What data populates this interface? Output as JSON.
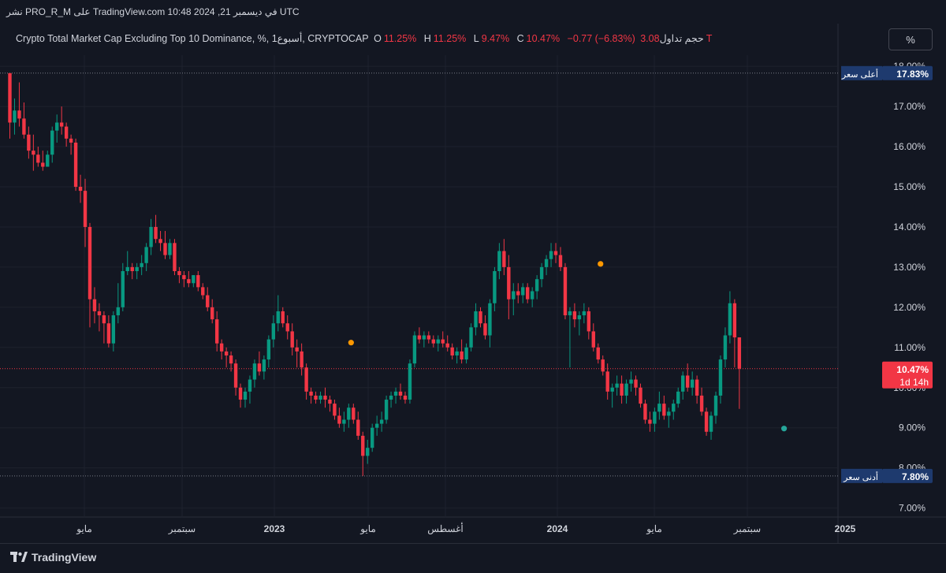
{
  "header": {
    "caption": "نشر PRO_R_M على TradingView.com 10:48 2024 ,21 في ديسمبر UTC"
  },
  "legend": {
    "symbol": "Crypto Total Market Cap Excluding Top 10 Dominance, %, 1أسبوع, CRYPTOCAP",
    "o_label": "O",
    "o_value": "11.25%",
    "h_label": "H",
    "h_value": "11.25%",
    "l_label": "L",
    "l_value": "9.47%",
    "c_label": "C",
    "c_value": "10.47%",
    "change": "−0.77 (−6.83%)",
    "volume_label": "حجم تداول",
    "volume_value": "3.08T"
  },
  "toolbar": {
    "percent_button": "%"
  },
  "footer": {
    "brand": "TradingView"
  },
  "colors": {
    "background": "#131722",
    "grid": "#1e222d",
    "up": "#089981",
    "down": "#f23645",
    "label_blue": "#1e3a6e",
    "marker_orange": "#ff9800",
    "marker_teal": "#26a69a"
  },
  "chart_data": {
    "type": "candlestick",
    "title": "Crypto Total Market Cap Excluding Top 10 Dominance",
    "interval": "1 week",
    "ylabel_unit": "%",
    "ylim": [
      6.8,
      18.3
    ],
    "yticks": [
      "7.00%",
      "8.00%",
      "9.00%",
      "10.00%",
      "11.00%",
      "12.00%",
      "13.00%",
      "14.00%",
      "15.00%",
      "16.00%",
      "17.00%",
      "18.00%"
    ],
    "ytick_values": [
      7,
      8,
      9,
      10,
      11,
      12,
      13,
      14,
      15,
      16,
      17,
      18
    ],
    "xlabels": [
      "مايو",
      "سبتمبر",
      "2023",
      "مايو",
      "أغسطس",
      "2024",
      "مايو",
      "سبتمبر",
      "2025"
    ],
    "xlabel_bold": [
      false,
      false,
      true,
      false,
      false,
      true,
      false,
      false,
      true
    ],
    "high_line": {
      "label": "أعلى سعر",
      "value": "17.83%",
      "level": 17.83
    },
    "low_line": {
      "label": "أدنى سعر",
      "value": "7.80%",
      "level": 7.8
    },
    "last_price": {
      "value": "10.47%",
      "countdown": "1d 14h",
      "level": 10.47
    },
    "markers": [
      {
        "candle_index": 72,
        "level": 11.12,
        "color": "orange"
      },
      {
        "candle_index": 125,
        "level": 13.08,
        "color": "orange"
      },
      {
        "candle_index": 164,
        "level": 8.98,
        "color": "teal"
      }
    ],
    "candles": [
      [
        17.83,
        17.83,
        16.2,
        16.6
      ],
      [
        16.6,
        17.2,
        16.3,
        16.9
      ],
      [
        16.9,
        17.6,
        16.5,
        16.7
      ],
      [
        16.7,
        17.1,
        16.2,
        16.3
      ],
      [
        16.3,
        16.5,
        15.7,
        15.9
      ],
      [
        15.9,
        16.3,
        15.4,
        15.8
      ],
      [
        15.8,
        16.0,
        15.5,
        15.6
      ],
      [
        15.6,
        15.9,
        15.4,
        15.5
      ],
      [
        15.5,
        15.9,
        15.5,
        15.8
      ],
      [
        15.8,
        16.5,
        15.6,
        16.4
      ],
      [
        16.4,
        16.8,
        16.1,
        16.6
      ],
      [
        16.6,
        17.0,
        16.3,
        16.5
      ],
      [
        16.5,
        16.6,
        16.0,
        16.2
      ],
      [
        16.2,
        16.3,
        15.8,
        16.1
      ],
      [
        16.1,
        16.2,
        14.9,
        15.0
      ],
      [
        15.0,
        15.3,
        14.6,
        14.9
      ],
      [
        14.9,
        15.2,
        13.5,
        14.0
      ],
      [
        14.0,
        14.1,
        11.5,
        12.2
      ],
      [
        12.2,
        12.5,
        11.6,
        11.9
      ],
      [
        11.9,
        12.1,
        11.4,
        11.8
      ],
      [
        11.8,
        11.9,
        11.1,
        11.6
      ],
      [
        11.6,
        11.8,
        11.0,
        11.1
      ],
      [
        11.1,
        11.9,
        10.9,
        11.8
      ],
      [
        11.8,
        12.6,
        11.6,
        12.0
      ],
      [
        12.0,
        13.1,
        11.9,
        12.9
      ],
      [
        12.9,
        13.4,
        12.8,
        13.0
      ],
      [
        13.0,
        13.1,
        12.7,
        12.9
      ],
      [
        12.9,
        13.1,
        12.7,
        13.0
      ],
      [
        13.0,
        13.3,
        12.8,
        13.1
      ],
      [
        13.1,
        13.6,
        12.9,
        13.5
      ],
      [
        13.5,
        14.2,
        13.3,
        14.0
      ],
      [
        14.0,
        14.3,
        13.6,
        13.7
      ],
      [
        13.7,
        13.9,
        13.4,
        13.6
      ],
      [
        13.6,
        13.9,
        13.2,
        13.3
      ],
      [
        13.3,
        13.7,
        13.2,
        13.6
      ],
      [
        13.6,
        13.7,
        12.8,
        12.9
      ],
      [
        12.9,
        13.0,
        12.6,
        12.8
      ],
      [
        12.8,
        12.9,
        12.5,
        12.7
      ],
      [
        12.7,
        12.9,
        12.5,
        12.6
      ],
      [
        12.6,
        12.8,
        12.5,
        12.8
      ],
      [
        12.8,
        12.9,
        12.4,
        12.5
      ],
      [
        12.5,
        12.6,
        12.2,
        12.3
      ],
      [
        12.3,
        12.5,
        11.9,
        12.0
      ],
      [
        12.0,
        12.2,
        11.6,
        11.7
      ],
      [
        11.7,
        11.9,
        10.9,
        11.1
      ],
      [
        11.1,
        11.2,
        10.7,
        10.9
      ],
      [
        10.9,
        11.0,
        10.5,
        10.8
      ],
      [
        10.8,
        10.9,
        10.4,
        10.6
      ],
      [
        10.6,
        10.7,
        9.8,
        10.0
      ],
      [
        10.0,
        10.1,
        9.5,
        9.7
      ],
      [
        9.7,
        10.0,
        9.5,
        9.9
      ],
      [
        9.9,
        10.3,
        9.6,
        10.2
      ],
      [
        10.2,
        10.7,
        10.0,
        10.6
      ],
      [
        10.6,
        10.9,
        10.3,
        10.4
      ],
      [
        10.4,
        10.8,
        10.2,
        10.7
      ],
      [
        10.7,
        11.3,
        10.5,
        11.2
      ],
      [
        11.2,
        11.8,
        11.0,
        11.6
      ],
      [
        11.6,
        12.3,
        11.4,
        11.9
      ],
      [
        11.9,
        12.0,
        11.5,
        11.6
      ],
      [
        11.6,
        11.8,
        11.2,
        11.4
      ],
      [
        11.4,
        11.6,
        10.8,
        11.0
      ],
      [
        11.0,
        11.2,
        10.5,
        10.9
      ],
      [
        10.9,
        11.1,
        10.3,
        10.5
      ],
      [
        10.5,
        10.6,
        9.7,
        9.9
      ],
      [
        9.9,
        10.0,
        9.6,
        9.8
      ],
      [
        9.8,
        9.9,
        9.6,
        9.7
      ],
      [
        9.7,
        9.9,
        9.6,
        9.8
      ],
      [
        9.8,
        10.0,
        9.5,
        9.7
      ],
      [
        9.7,
        9.8,
        9.4,
        9.6
      ],
      [
        9.6,
        9.7,
        9.2,
        9.3
      ],
      [
        9.3,
        9.5,
        9.0,
        9.1
      ],
      [
        9.1,
        9.4,
        8.9,
        9.2
      ],
      [
        9.2,
        9.6,
        9.0,
        9.5
      ],
      [
        9.5,
        9.6,
        9.1,
        9.2
      ],
      [
        9.2,
        9.4,
        8.7,
        8.8
      ],
      [
        8.8,
        8.9,
        7.8,
        8.3
      ],
      [
        8.3,
        8.7,
        8.1,
        8.5
      ],
      [
        8.5,
        9.1,
        8.4,
        9.0
      ],
      [
        9.0,
        9.3,
        8.8,
        9.1
      ],
      [
        9.1,
        9.4,
        8.9,
        9.2
      ],
      [
        9.2,
        9.8,
        9.1,
        9.7
      ],
      [
        9.7,
        9.9,
        9.5,
        9.8
      ],
      [
        9.8,
        10.0,
        9.6,
        9.9
      ],
      [
        9.9,
        10.1,
        9.7,
        9.8
      ],
      [
        9.8,
        9.9,
        9.6,
        9.7
      ],
      [
        9.7,
        10.7,
        9.6,
        10.6
      ],
      [
        10.6,
        11.4,
        10.5,
        11.3
      ],
      [
        11.3,
        11.5,
        11.1,
        11.2
      ],
      [
        11.2,
        11.4,
        11.0,
        11.3
      ],
      [
        11.3,
        11.4,
        11.1,
        11.2
      ],
      [
        11.2,
        11.3,
        11.0,
        11.1
      ],
      [
        11.1,
        11.3,
        10.9,
        11.2
      ],
      [
        11.2,
        11.4,
        11.0,
        11.1
      ],
      [
        11.1,
        11.3,
        10.9,
        11.0
      ],
      [
        11.0,
        11.1,
        10.7,
        10.8
      ],
      [
        10.8,
        11.0,
        10.6,
        10.9
      ],
      [
        10.9,
        11.2,
        10.6,
        10.7
      ],
      [
        10.7,
        11.1,
        10.6,
        11.0
      ],
      [
        11.0,
        11.6,
        10.9,
        11.5
      ],
      [
        11.5,
        12.1,
        11.3,
        11.9
      ],
      [
        11.9,
        12.0,
        11.5,
        11.6
      ],
      [
        11.6,
        11.8,
        11.2,
        11.3
      ],
      [
        11.3,
        12.2,
        11.0,
        12.1
      ],
      [
        12.1,
        13.0,
        11.9,
        12.9
      ],
      [
        12.9,
        13.6,
        12.7,
        13.4
      ],
      [
        13.4,
        13.7,
        12.8,
        13.0
      ],
      [
        13.0,
        13.3,
        11.7,
        12.2
      ],
      [
        12.2,
        12.6,
        11.8,
        12.4
      ],
      [
        12.4,
        12.6,
        12.1,
        12.3
      ],
      [
        12.3,
        12.6,
        12.1,
        12.5
      ],
      [
        12.5,
        12.6,
        12.1,
        12.2
      ],
      [
        12.2,
        12.5,
        12.0,
        12.4
      ],
      [
        12.4,
        12.8,
        12.2,
        12.7
      ],
      [
        12.7,
        13.1,
        12.5,
        13.0
      ],
      [
        13.0,
        13.3,
        12.8,
        13.2
      ],
      [
        13.2,
        13.6,
        13.0,
        13.4
      ],
      [
        13.4,
        13.6,
        13.1,
        13.3
      ],
      [
        13.3,
        13.5,
        12.9,
        13.0
      ],
      [
        13.0,
        13.1,
        11.7,
        11.8
      ],
      [
        11.8,
        12.0,
        10.5,
        11.9
      ],
      [
        11.9,
        12.1,
        11.5,
        11.7
      ],
      [
        11.7,
        11.9,
        11.3,
        11.8
      ],
      [
        11.8,
        12.1,
        11.6,
        11.9
      ],
      [
        11.9,
        12.0,
        11.2,
        11.4
      ],
      [
        11.4,
        11.6,
        10.9,
        11.0
      ],
      [
        11.0,
        11.1,
        10.6,
        10.7
      ],
      [
        10.7,
        10.8,
        10.3,
        10.4
      ],
      [
        10.4,
        10.6,
        9.7,
        9.9
      ],
      [
        9.9,
        10.1,
        9.5,
        10.0
      ],
      [
        10.0,
        10.3,
        9.8,
        10.1
      ],
      [
        10.1,
        10.3,
        9.6,
        9.8
      ],
      [
        9.8,
        10.2,
        9.6,
        10.1
      ],
      [
        10.1,
        10.4,
        9.9,
        10.2
      ],
      [
        10.2,
        10.3,
        9.8,
        10.0
      ],
      [
        10.0,
        10.1,
        9.5,
        9.6
      ],
      [
        9.6,
        9.7,
        9.1,
        9.2
      ],
      [
        9.2,
        9.4,
        8.9,
        9.1
      ],
      [
        9.1,
        9.5,
        8.9,
        9.4
      ],
      [
        9.4,
        9.9,
        9.2,
        9.6
      ],
      [
        9.6,
        9.8,
        9.2,
        9.3
      ],
      [
        9.3,
        9.5,
        9.0,
        9.4
      ],
      [
        9.4,
        9.7,
        9.2,
        9.6
      ],
      [
        9.6,
        10.0,
        9.5,
        9.9
      ],
      [
        9.9,
        10.4,
        9.7,
        10.3
      ],
      [
        10.3,
        10.6,
        9.9,
        10.0
      ],
      [
        10.0,
        10.4,
        9.8,
        10.2
      ],
      [
        10.2,
        10.3,
        9.6,
        9.8
      ],
      [
        9.8,
        10.0,
        9.3,
        9.4
      ],
      [
        9.4,
        9.5,
        8.8,
        8.9
      ],
      [
        8.9,
        9.4,
        8.7,
        9.3
      ],
      [
        9.3,
        9.9,
        9.1,
        9.8
      ],
      [
        9.8,
        10.8,
        9.6,
        10.7
      ],
      [
        10.7,
        11.5,
        10.5,
        11.3
      ],
      [
        11.3,
        12.4,
        11.1,
        12.1
      ],
      [
        12.1,
        12.2,
        10.5,
        11.25
      ],
      [
        11.25,
        11.25,
        9.47,
        10.47
      ]
    ]
  }
}
